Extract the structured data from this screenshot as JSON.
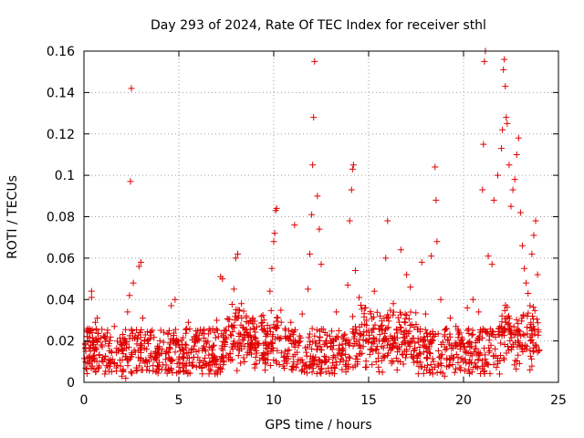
{
  "chart_data": {
    "type": "scatter",
    "title": "Day 293 of 2024, Rate Of TEC Index for receiver sthl",
    "xlabel": "GPS time / hours",
    "ylabel": "ROTI / TECUs",
    "xlim": [
      0,
      25
    ],
    "ylim": [
      0,
      0.16
    ],
    "xticks": [
      0,
      5,
      10,
      15,
      20,
      25
    ],
    "xtick_labels": [
      "0",
      "5",
      "10",
      "15",
      "20",
      "25"
    ],
    "yticks": [
      0,
      0.02,
      0.04,
      0.06,
      0.08,
      0.1,
      0.12,
      0.14,
      0.16
    ],
    "ytick_labels": [
      "0",
      "0.02",
      "0.04",
      "0.06",
      "0.08",
      "0.1",
      "0.12",
      "0.14",
      "0.16"
    ],
    "grid": true,
    "marker": "+",
    "color": "#e00000",
    "series": [
      {
        "name": "ROTI",
        "points": [
          [
            0.1,
            0.015
          ],
          [
            0.2,
            0.026
          ],
          [
            0.3,
            0.012
          ],
          [
            0.4,
            0.041
          ],
          [
            0.4,
            0.044
          ],
          [
            0.5,
            0.02
          ],
          [
            0.6,
            0.029
          ],
          [
            0.7,
            0.031
          ],
          [
            0.8,
            0.008
          ],
          [
            0.9,
            0.018
          ],
          [
            1.0,
            0.012
          ],
          [
            1.2,
            0.021
          ],
          [
            1.4,
            0.009
          ],
          [
            1.6,
            0.027
          ],
          [
            1.8,
            0.015
          ],
          [
            2.0,
            0.003
          ],
          [
            2.1,
            0.019
          ],
          [
            2.3,
            0.034
          ],
          [
            2.4,
            0.042
          ],
          [
            2.45,
            0.097
          ],
          [
            2.5,
            0.142
          ],
          [
            2.6,
            0.048
          ],
          [
            2.7,
            0.022
          ],
          [
            2.9,
            0.056
          ],
          [
            3.0,
            0.058
          ],
          [
            3.1,
            0.031
          ],
          [
            3.3,
            0.016
          ],
          [
            3.5,
            0.024
          ],
          [
            3.7,
            0.011
          ],
          [
            4.0,
            0.02
          ],
          [
            4.3,
            0.014
          ],
          [
            4.6,
            0.037
          ],
          [
            4.8,
            0.04
          ],
          [
            5.0,
            0.018
          ],
          [
            5.2,
            0.009
          ],
          [
            5.5,
            0.029
          ],
          [
            5.8,
            0.022
          ],
          [
            6.0,
            0.012
          ],
          [
            6.3,
            0.025
          ],
          [
            6.6,
            0.017
          ],
          [
            7.0,
            0.03
          ],
          [
            7.2,
            0.051
          ],
          [
            7.3,
            0.05
          ],
          [
            7.5,
            0.021
          ],
          [
            7.7,
            0.014
          ],
          [
            7.9,
            0.045
          ],
          [
            8.0,
            0.06
          ],
          [
            8.1,
            0.062
          ],
          [
            8.3,
            0.038
          ],
          [
            8.6,
            0.024
          ],
          [
            8.9,
            0.031
          ],
          [
            9.2,
            0.018
          ],
          [
            9.5,
            0.026
          ],
          [
            9.8,
            0.044
          ],
          [
            9.9,
            0.055
          ],
          [
            10.0,
            0.068
          ],
          [
            10.05,
            0.072
          ],
          [
            10.1,
            0.083
          ],
          [
            10.15,
            0.084
          ],
          [
            10.3,
            0.021
          ],
          [
            10.6,
            0.015
          ],
          [
            10.9,
            0.029
          ],
          [
            11.1,
            0.076
          ],
          [
            11.3,
            0.019
          ],
          [
            11.5,
            0.033
          ],
          [
            11.8,
            0.045
          ],
          [
            11.9,
            0.062
          ],
          [
            12.0,
            0.081
          ],
          [
            12.05,
            0.105
          ],
          [
            12.1,
            0.128
          ],
          [
            12.15,
            0.155
          ],
          [
            12.3,
            0.09
          ],
          [
            12.4,
            0.074
          ],
          [
            12.5,
            0.057
          ],
          [
            12.7,
            0.024
          ],
          [
            13.0,
            0.017
          ],
          [
            13.3,
            0.034
          ],
          [
            13.6,
            0.022
          ],
          [
            13.9,
            0.047
          ],
          [
            14.0,
            0.078
          ],
          [
            14.1,
            0.093
          ],
          [
            14.15,
            0.103
          ],
          [
            14.2,
            0.105
          ],
          [
            14.3,
            0.054
          ],
          [
            14.5,
            0.041
          ],
          [
            14.8,
            0.036
          ],
          [
            15.0,
            0.025
          ],
          [
            15.3,
            0.044
          ],
          [
            15.6,
            0.032
          ],
          [
            15.9,
            0.06
          ],
          [
            16.0,
            0.078
          ],
          [
            16.3,
            0.038
          ],
          [
            16.7,
            0.064
          ],
          [
            17.0,
            0.052
          ],
          [
            17.2,
            0.046
          ],
          [
            17.5,
            0.028
          ],
          [
            17.8,
            0.058
          ],
          [
            18.0,
            0.033
          ],
          [
            18.3,
            0.061
          ],
          [
            18.5,
            0.104
          ],
          [
            18.55,
            0.088
          ],
          [
            18.6,
            0.068
          ],
          [
            18.8,
            0.04
          ],
          [
            19.0,
            0.023
          ],
          [
            19.3,
            0.031
          ],
          [
            19.6,
            0.027
          ],
          [
            19.9,
            0.019
          ],
          [
            20.2,
            0.036
          ],
          [
            20.5,
            0.04
          ],
          [
            20.8,
            0.034
          ],
          [
            21.0,
            0.093
          ],
          [
            21.05,
            0.115
          ],
          [
            21.1,
            0.155
          ],
          [
            21.15,
            0.16
          ],
          [
            21.3,
            0.061
          ],
          [
            21.5,
            0.057
          ],
          [
            21.6,
            0.088
          ],
          [
            21.8,
            0.1
          ],
          [
            22.0,
            0.113
          ],
          [
            22.05,
            0.122
          ],
          [
            22.1,
            0.151
          ],
          [
            22.15,
            0.156
          ],
          [
            22.2,
            0.143
          ],
          [
            22.25,
            0.128
          ],
          [
            22.3,
            0.125
          ],
          [
            22.4,
            0.105
          ],
          [
            22.5,
            0.085
          ],
          [
            22.6,
            0.093
          ],
          [
            22.7,
            0.098
          ],
          [
            22.8,
            0.11
          ],
          [
            22.9,
            0.118
          ],
          [
            23.0,
            0.082
          ],
          [
            23.1,
            0.066
          ],
          [
            23.2,
            0.055
          ],
          [
            23.3,
            0.048
          ],
          [
            23.4,
            0.043
          ],
          [
            23.5,
            0.037
          ],
          [
            23.6,
            0.062
          ],
          [
            23.7,
            0.071
          ],
          [
            23.8,
            0.078
          ],
          [
            23.9,
            0.052
          ],
          [
            0.3,
            0.009
          ],
          [
            1.1,
            0.004
          ],
          [
            1.7,
            0.007
          ],
          [
            2.2,
            0.002
          ],
          [
            3.8,
            0.005
          ],
          [
            4.5,
            0.006
          ],
          [
            6.9,
            0.004
          ],
          [
            9.0,
            0.007
          ],
          [
            11.0,
            0.006
          ],
          [
            13.8,
            0.005
          ],
          [
            16.5,
            0.006
          ],
          [
            19.0,
            0.003
          ],
          [
            21.9,
            0.004
          ],
          [
            23.5,
            0.006
          ]
        ]
      }
    ]
  }
}
